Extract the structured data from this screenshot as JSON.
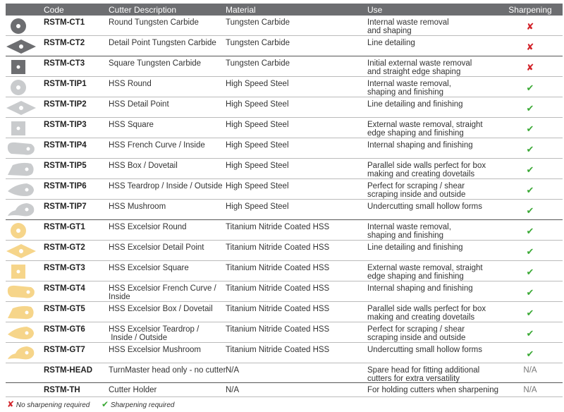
{
  "headers": {
    "code": "Code",
    "desc": "Cutter Description",
    "material": "Material",
    "use": "Use",
    "sharpening": "Sharpening"
  },
  "colors": {
    "header_bg": "#6d6e71",
    "carbide": "#6d6e71",
    "hss": "#c9cbcd",
    "tin": "#f6d58a",
    "cross": "#d2232a",
    "check": "#3aa935"
  },
  "rows": [
    {
      "icon": "round-cutter",
      "group": "carbide",
      "code": "RSTM-CT1",
      "desc": "Round Tungsten Carbide",
      "material": "Tungsten Carbide",
      "use": "Internal waste removal\nand shaping",
      "sharp": "✘"
    },
    {
      "icon": "detail-point-cutter",
      "group": "carbide",
      "code": "RSTM-CT2",
      "desc": "Detail Point Tungsten Carbide",
      "material": "Tungsten Carbide",
      "use": "Line detailing",
      "sharp": "✘"
    },
    {
      "icon": "square-cutter",
      "group": "carbide",
      "code": "RSTM-CT3",
      "desc": "Square Tungsten Carbide",
      "material": "Tungsten Carbide",
      "use": "Initial external waste removal\nand straight edge shaping",
      "sharp": "✘"
    },
    {
      "icon": "round-cutter",
      "group": "hss",
      "code": "RSTM-TIP1",
      "desc": "HSS Round",
      "material": "High Speed Steel",
      "use": "Internal waste removal,\nshaping and finishing",
      "sharp": "✔"
    },
    {
      "icon": "detail-point-cutter",
      "group": "hss",
      "code": "RSTM-TIP2",
      "desc": "HSS Detail Point",
      "material": "High Speed Steel",
      "use": "Line detailing and finishing",
      "sharp": "✔"
    },
    {
      "icon": "square-cutter",
      "group": "hss",
      "code": "RSTM-TIP3",
      "desc": "HSS Square",
      "material": "High Speed Steel",
      "use": "External waste removal, straight\nedge shaping and finishing",
      "sharp": "✔"
    },
    {
      "icon": "french-curve-cutter",
      "group": "hss",
      "code": "RSTM-TIP4",
      "desc": "HSS French Curve / Inside",
      "material": "High Speed Steel",
      "use": "Internal shaping and finishing",
      "sharp": "✔"
    },
    {
      "icon": "dovetail-cutter",
      "group": "hss",
      "code": "RSTM-TIP5",
      "desc": "HSS Box / Dovetail",
      "material": "High Speed Steel",
      "use": "Parallel side walls perfect for box\nmaking and creating dovetails",
      "sharp": "✔"
    },
    {
      "icon": "teardrop-cutter",
      "group": "hss",
      "code": "RSTM-TIP6",
      "desc": "HSS Teardrop / Inside / Outside",
      "material": "High Speed Steel",
      "use": "Perfect for scraping / shear\nscraping inside and outside",
      "sharp": "✔"
    },
    {
      "icon": "mushroom-cutter",
      "group": "hss",
      "code": "RSTM-TIP7",
      "desc": "HSS Mushroom",
      "material": "High Speed Steel",
      "use": "Undercutting small hollow forms",
      "sharp": "✔"
    },
    {
      "icon": "round-cutter",
      "group": "tin",
      "code": "RSTM-GT1",
      "desc": "HSS Excelsior Round",
      "material": "Titanium Nitride Coated HSS",
      "use": "Internal waste removal,\nshaping and finishing",
      "sharp": "✔"
    },
    {
      "icon": "detail-point-cutter",
      "group": "tin",
      "code": "RSTM-GT2",
      "desc": "HSS Excelsior Detail Point",
      "material": "Titanium Nitride Coated HSS",
      "use": "Line detailing and finishing",
      "sharp": "✔"
    },
    {
      "icon": "square-cutter",
      "group": "tin",
      "code": "RSTM-GT3",
      "desc": "HSS Excelsior Square",
      "material": "Titanium Nitride Coated HSS",
      "use": "External waste removal, straight\nedge shaping and finishing",
      "sharp": "✔"
    },
    {
      "icon": "french-curve-cutter",
      "group": "tin",
      "code": "RSTM-GT4",
      "desc": "HSS Excelsior French Curve /\nInside",
      "material": "Titanium Nitride Coated HSS",
      "use": "Internal shaping and finishing",
      "sharp": "✔"
    },
    {
      "icon": "dovetail-cutter",
      "group": "tin",
      "code": "RSTM-GT5",
      "desc": "HSS Excelsior Box / Dovetail",
      "material": "Titanium Nitride Coated HSS",
      "use": "Parallel side walls perfect for box\nmaking and creating dovetails",
      "sharp": "✔"
    },
    {
      "icon": "teardrop-cutter",
      "group": "tin",
      "code": "RSTM-GT6",
      "desc": "HSS Excelsior Teardrop /\n Inside / Outside",
      "material": "Titanium Nitride Coated HSS",
      "use": "Perfect for scraping / shear\nscraping inside and outside",
      "sharp": "✔"
    },
    {
      "icon": "mushroom-cutter",
      "group": "tin",
      "code": "RSTM-GT7",
      "desc": "HSS Excelsior Mushroom",
      "material": "Titanium Nitride Coated HSS",
      "use": "Undercutting small hollow forms",
      "sharp": "✔"
    },
    {
      "icon": "",
      "group": "",
      "code": "RSTM-HEAD",
      "desc": "TurnMaster head only - no cutter",
      "material": "N/A",
      "use": "Spare head for fitting additional\ncutters for extra versatility",
      "sharp": "N/A"
    },
    {
      "icon": "",
      "group": "",
      "code": "RSTM-TH",
      "desc": "Cutter Holder",
      "material": "N/A",
      "use": "For holding cutters when sharpening",
      "sharp": "N/A"
    }
  ],
  "legend": {
    "cross": "✘",
    "no_sharpening": "No sharpening required",
    "check": "✔",
    "sharpening": "Sharpening required"
  }
}
